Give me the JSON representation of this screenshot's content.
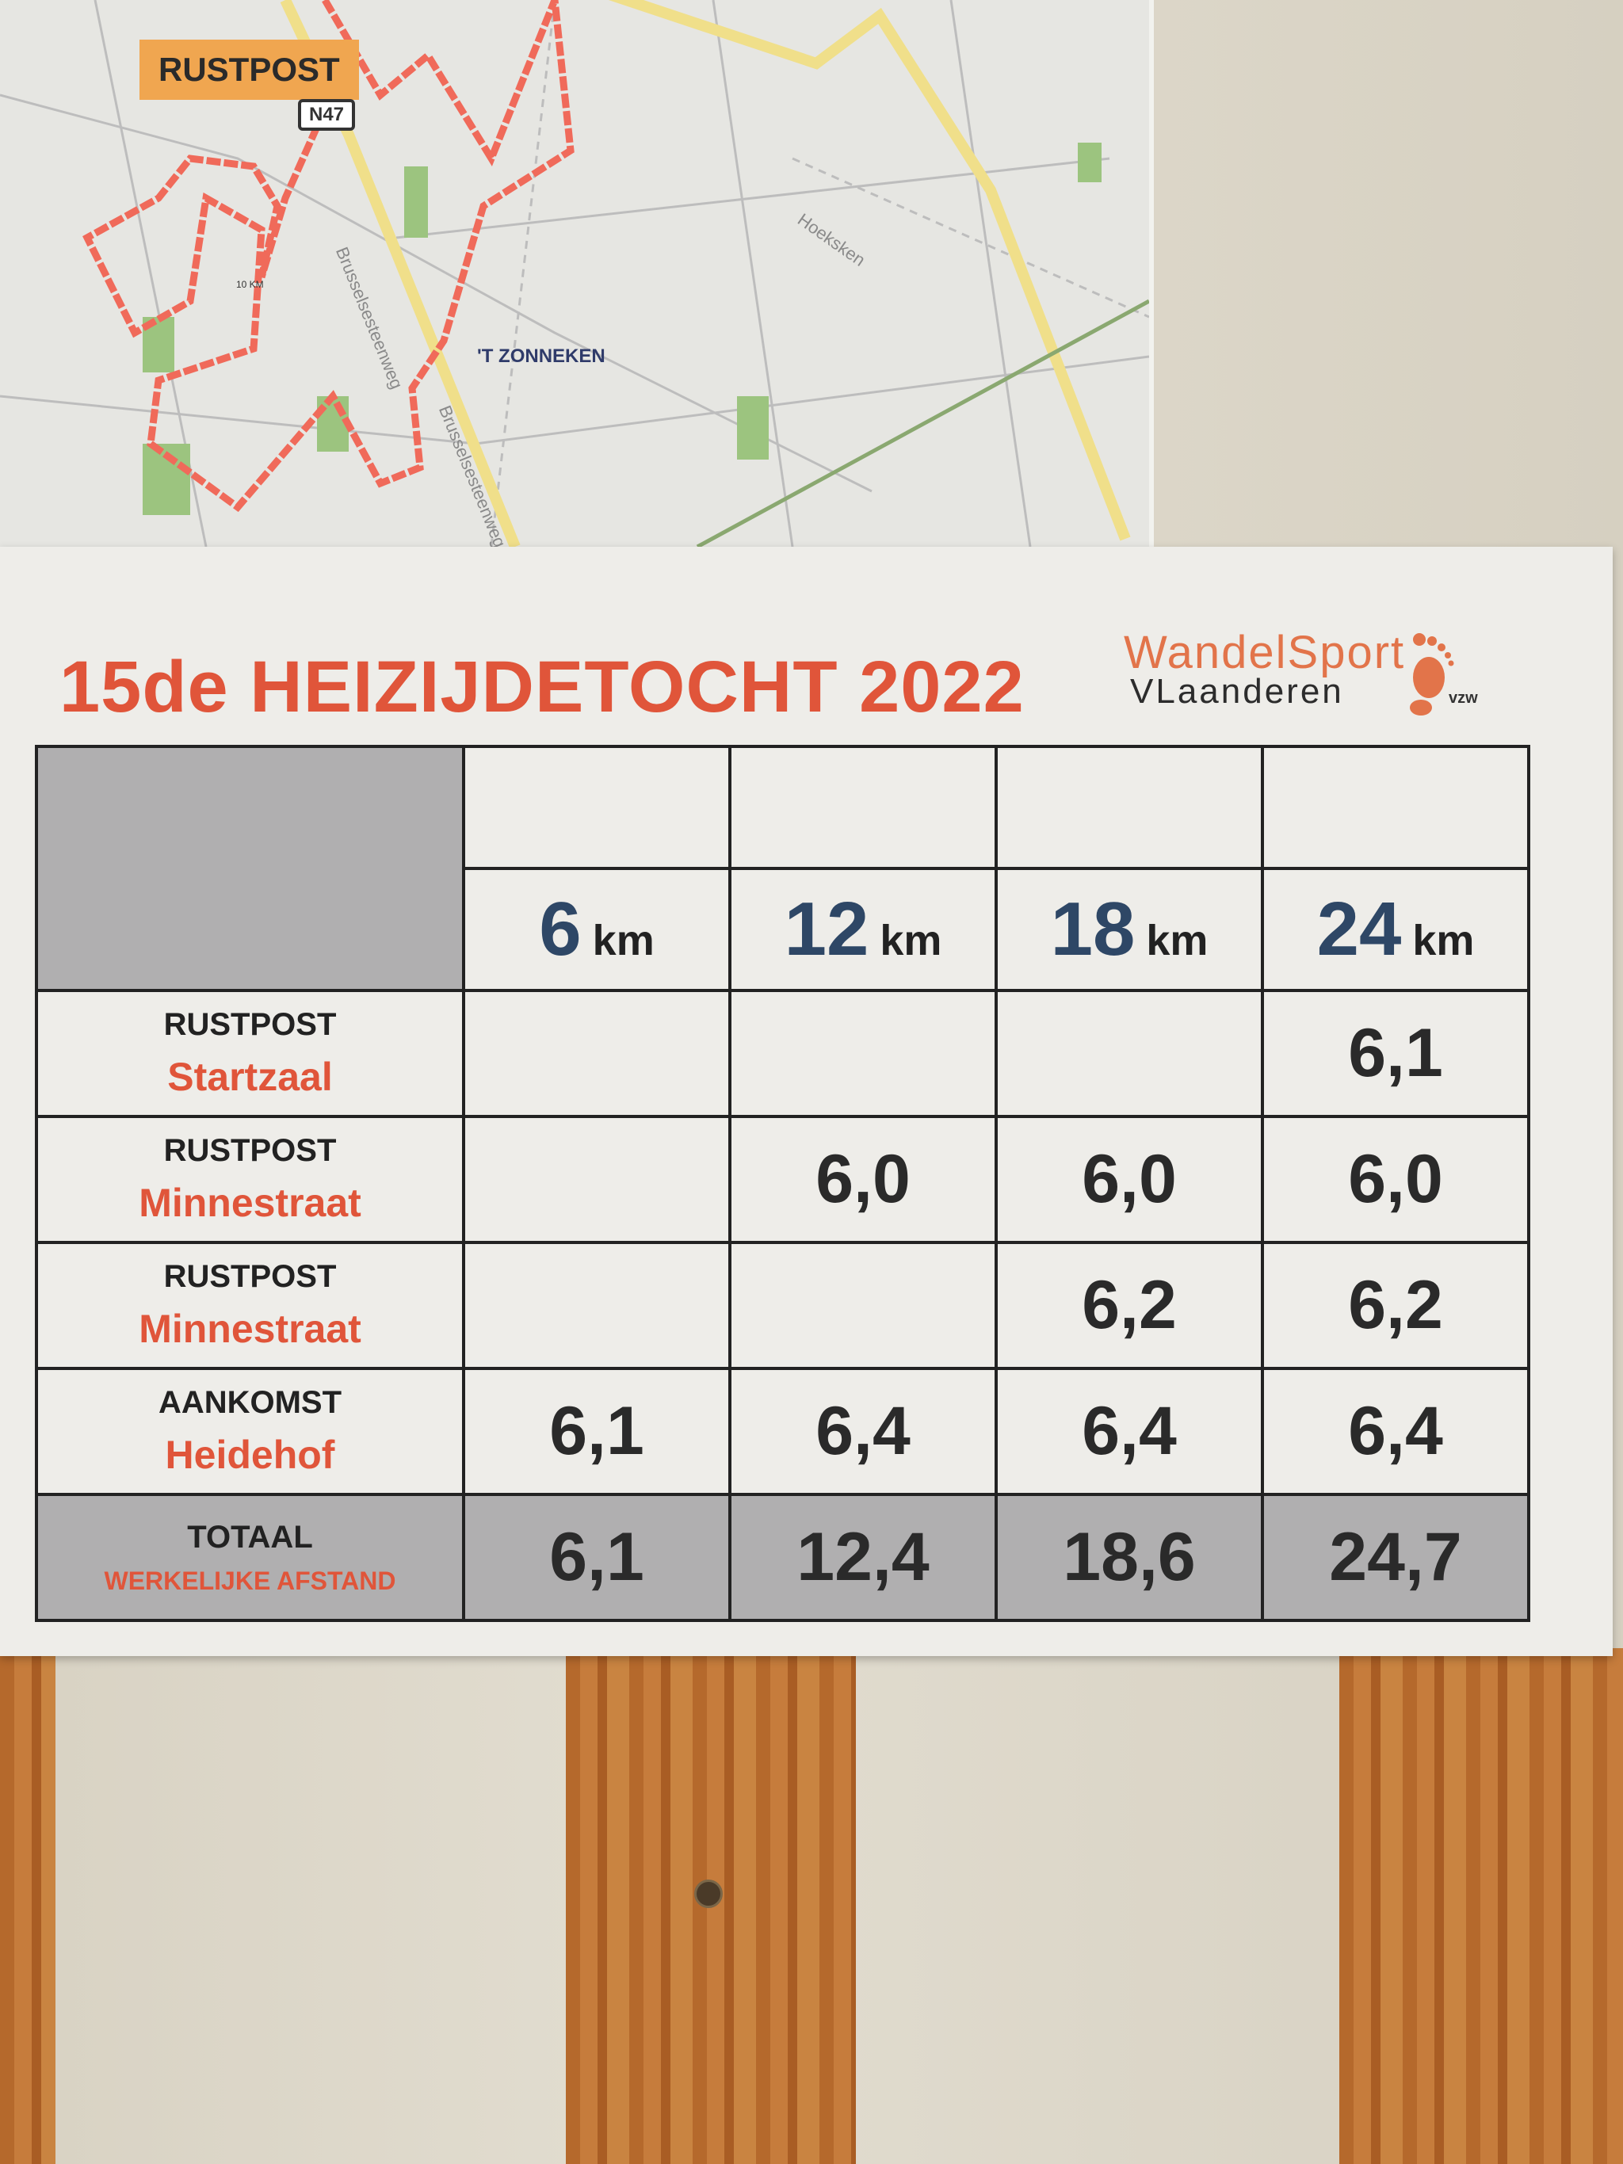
{
  "map": {
    "rustpost_label": "RUSTPOST",
    "road_shield": "N47",
    "place_label": "'T ZONNEKEN",
    "streets": [
      "Brusselsesteenweg",
      "Hoeksken",
      "Brusselsesteenweg"
    ],
    "marker": "10 KM",
    "colors": {
      "route": "#f06a5a",
      "main_road": "#f0df8a",
      "park": "#9cc47f"
    }
  },
  "sign": {
    "title": "15de  HEIZIJDETOCHT 2022",
    "logo": {
      "line1": "WandelSport",
      "line2": "VLaanderen",
      "suffix": "vzw"
    },
    "columns": [
      {
        "value": "6",
        "unit": "km"
      },
      {
        "value": "12",
        "unit": "km"
      },
      {
        "value": "18",
        "unit": "km"
      },
      {
        "value": "24",
        "unit": "km"
      }
    ],
    "rows": [
      {
        "top": "RUSTPOST",
        "bottom": "Startzaal",
        "cells": [
          "",
          "",
          "",
          "6,1"
        ]
      },
      {
        "top": "RUSTPOST",
        "bottom": "Minnestraat",
        "cells": [
          "",
          "6,0",
          "6,0",
          "6,0"
        ]
      },
      {
        "top": "RUSTPOST",
        "bottom": "Minnestraat",
        "cells": [
          "",
          "",
          "6,2",
          "6,2"
        ]
      },
      {
        "top": "AANKOMST",
        "bottom": "Heidehof",
        "cells": [
          "6,1",
          "6,4",
          "6,4",
          "6,4"
        ]
      }
    ],
    "total": {
      "top": "TOTAAL",
      "bottom": "WERKELIJKE AFSTAND",
      "cells": [
        "6,1",
        "12,4",
        "18,6",
        "24,7"
      ]
    },
    "colors": {
      "title": "#e0553a",
      "distance": "#2e4766",
      "shaded": "#b0afb0"
    }
  }
}
